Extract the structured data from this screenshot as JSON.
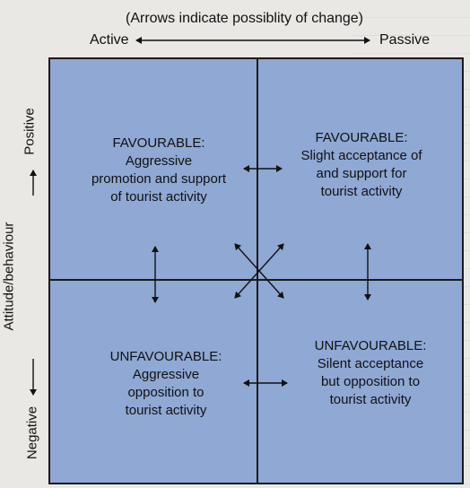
{
  "diagram": {
    "caption": "(Arrows indicate possiblity of change)",
    "axis_x": {
      "left_label": "Active",
      "right_label": "Passive"
    },
    "axis_y": {
      "top_label": "Positive",
      "title": "Attitude/behaviour",
      "bottom_label": "Negative"
    },
    "quadrants": {
      "top_left": {
        "heading": "FAVOURABLE:",
        "lines": [
          "Aggressive",
          "promotion and support",
          "of tourist activity"
        ]
      },
      "top_right": {
        "heading": "FAVOURABLE:",
        "lines": [
          "Slight acceptance of",
          "and support for",
          "tourist activity"
        ]
      },
      "bottom_left": {
        "heading": "UNFAVOURABLE:",
        "lines": [
          "Aggressive",
          "opposition to",
          "tourist activity"
        ]
      },
      "bottom_right": {
        "heading": "UNFAVOURABLE:",
        "lines": [
          "Silent acceptance",
          "but opposition to",
          "tourist activity"
        ]
      }
    },
    "colors": {
      "quadrant_fill": "#8fa8d4",
      "lines": "#1a1a1a",
      "page": "#e9e8e4"
    }
  }
}
